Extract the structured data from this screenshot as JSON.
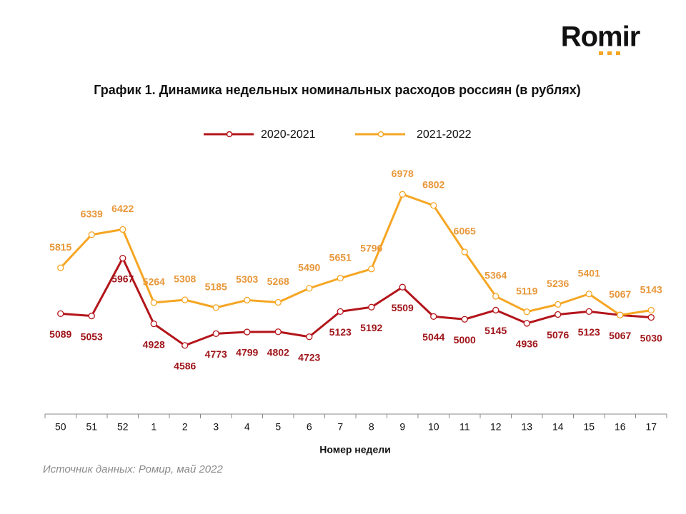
{
  "logo": "Romir",
  "chart_data": {
    "type": "line",
    "title": "График 1. Динамика недельных номинальных расходов россиян (в рублях)",
    "x_label": "Номер недели",
    "source": "Источник данных: Ромир, май 2022",
    "categories": [
      "50",
      "51",
      "52",
      "1",
      "2",
      "3",
      "4",
      "5",
      "6",
      "7",
      "8",
      "9",
      "10",
      "11",
      "12",
      "13",
      "14",
      "15",
      "16",
      "17"
    ],
    "series": [
      {
        "name": "2020-2021",
        "color": "#b3151b",
        "label_color": "#a0161b",
        "values": [
          5089,
          5053,
          5967,
          4928,
          4586,
          4773,
          4799,
          4802,
          4723,
          5123,
          5192,
          5509,
          5044,
          5000,
          5145,
          4936,
          5076,
          5123,
          5067,
          5030
        ]
      },
      {
        "name": "2021-2022",
        "color": "#f5a623",
        "label_color": "#e8973a",
        "values": [
          5815,
          6339,
          6422,
          5264,
          5308,
          5185,
          5303,
          5268,
          5490,
          5651,
          5796,
          6978,
          6802,
          6065,
          5364,
          5119,
          5236,
          5401,
          5067,
          5143
        ]
      }
    ],
    "ylim": [
      3500,
      7500
    ],
    "legend": "top"
  }
}
